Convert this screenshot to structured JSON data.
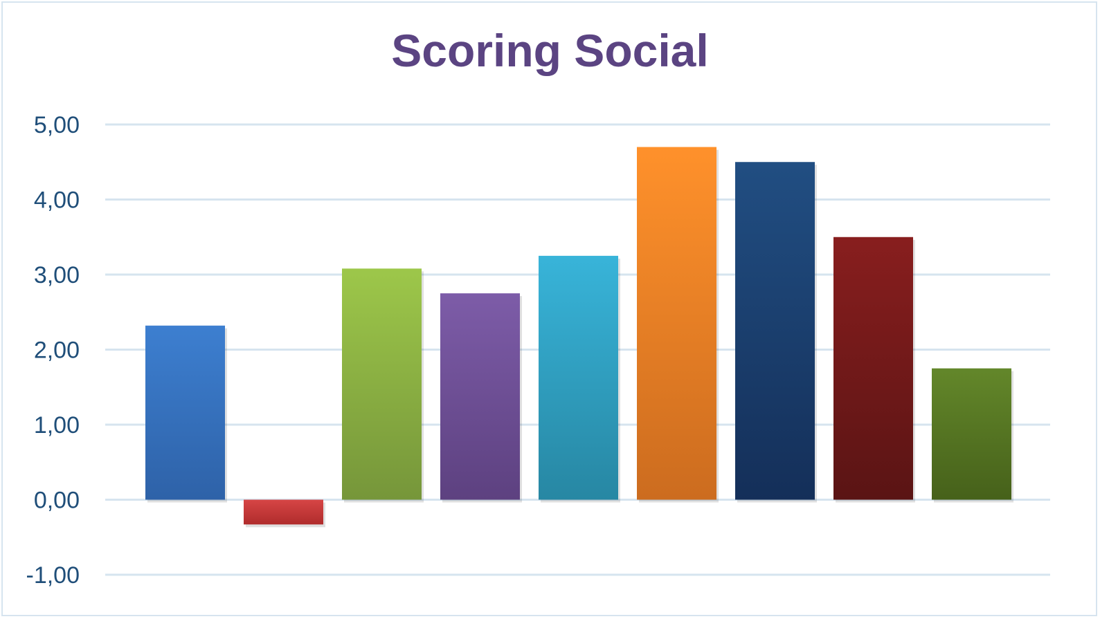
{
  "chart_data": {
    "type": "bar",
    "title": "Scoring Social",
    "xlabel": "",
    "ylabel": "",
    "ylim": [
      -1,
      5
    ],
    "y_ticks": [
      "5,00",
      "4,00",
      "3,00",
      "2,00",
      "1,00",
      "0,00",
      "-1,00"
    ],
    "y_tick_values": [
      5,
      4,
      3,
      2,
      1,
      0,
      -1
    ],
    "grid": true,
    "legend": "none",
    "values": [
      2.32,
      -0.33,
      3.08,
      2.75,
      3.25,
      4.7,
      4.5,
      3.5,
      1.75
    ],
    "colors": [
      [
        "#3d7fd0",
        "#2e62a8"
      ],
      [
        "#d64545",
        "#b02c2c"
      ],
      [
        "#9dc74a",
        "#76963a"
      ],
      [
        "#7d5ca8",
        "#5d4180"
      ],
      [
        "#38b4d9",
        "#2787a3"
      ],
      [
        "#ff912b",
        "#cc6c1f"
      ],
      [
        "#214e82",
        "#142f59"
      ],
      [
        "#881e1e",
        "#5a1414"
      ],
      [
        "#63872a",
        "#46611a"
      ]
    ],
    "axis_text_color": "#1f4e79",
    "gridline_color": "#d6e4ef",
    "title_color": "#5b4482"
  }
}
